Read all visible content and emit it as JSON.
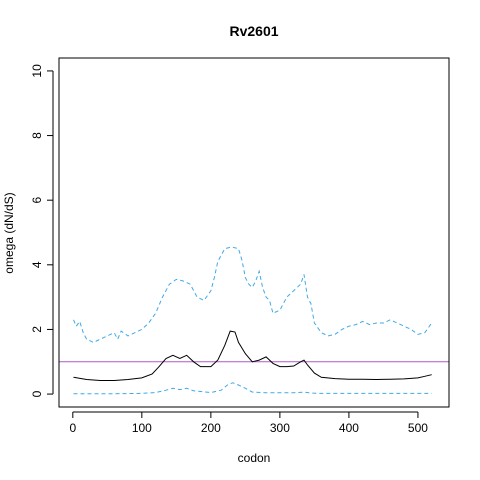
{
  "chart_data": {
    "type": "line",
    "title": "Rv2601",
    "xlabel": "codon",
    "ylabel": "omega (dN/dS)",
    "xlim": [
      -20,
      545
    ],
    "ylim": [
      -0.4,
      10.4
    ],
    "xticks": [
      0,
      100,
      200,
      300,
      400,
      500
    ],
    "yticks": [
      0,
      2,
      4,
      6,
      8,
      10
    ],
    "grid": false,
    "legend": "none",
    "reference_line": {
      "y": 1,
      "color": "#b05cc8"
    },
    "series": [
      {
        "style": "solid",
        "color": "#000000",
        "x": [
          1,
          20,
          40,
          60,
          80,
          100,
          115,
          125,
          135,
          145,
          155,
          165,
          175,
          185,
          200,
          210,
          220,
          228,
          235,
          240,
          250,
          260,
          270,
          280,
          290,
          300,
          310,
          320,
          330,
          335,
          340,
          350,
          360,
          380,
          400,
          420,
          440,
          460,
          480,
          500,
          510,
          520
        ],
        "y": [
          0.52,
          0.45,
          0.42,
          0.42,
          0.45,
          0.5,
          0.62,
          0.85,
          1.1,
          1.2,
          1.1,
          1.2,
          1.0,
          0.85,
          0.85,
          1.05,
          1.5,
          1.95,
          1.92,
          1.6,
          1.25,
          1.0,
          1.05,
          1.15,
          0.95,
          0.85,
          0.85,
          0.87,
          1.0,
          1.05,
          0.9,
          0.65,
          0.52,
          0.48,
          0.46,
          0.46,
          0.45,
          0.46,
          0.47,
          0.5,
          0.55,
          0.6
        ]
      },
      {
        "style": "dashed",
        "color": "#3fa9e8",
        "x": [
          1,
          5,
          10,
          15,
          20,
          30,
          40,
          50,
          60,
          65,
          70,
          80,
          90,
          100,
          110,
          120,
          130,
          140,
          150,
          160,
          170,
          180,
          190,
          200,
          205,
          210,
          220,
          230,
          240,
          245,
          250,
          255,
          260,
          265,
          270,
          275,
          280,
          285,
          290,
          300,
          310,
          320,
          330,
          335,
          340,
          345,
          350,
          360,
          370,
          380,
          390,
          400,
          410,
          420,
          430,
          440,
          450,
          460,
          470,
          480,
          490,
          500,
          510,
          520
        ],
        "y": [
          2.3,
          2.1,
          2.25,
          1.9,
          1.7,
          1.6,
          1.7,
          1.8,
          1.9,
          1.7,
          1.95,
          1.8,
          1.9,
          2.0,
          2.2,
          2.5,
          3.0,
          3.4,
          3.55,
          3.5,
          3.4,
          3.0,
          2.9,
          3.2,
          3.6,
          4.1,
          4.5,
          4.55,
          4.5,
          4.15,
          3.6,
          3.4,
          3.3,
          3.5,
          3.8,
          3.3,
          3.0,
          2.9,
          2.5,
          2.6,
          3.0,
          3.2,
          3.4,
          3.7,
          3.0,
          2.8,
          2.2,
          1.9,
          1.8,
          1.85,
          2.0,
          2.1,
          2.15,
          2.25,
          2.15,
          2.2,
          2.2,
          2.3,
          2.2,
          2.1,
          2.0,
          1.85,
          1.9,
          2.2
        ]
      },
      {
        "style": "dashed",
        "color": "#3fa9e8",
        "x": [
          1,
          50,
          100,
          120,
          135,
          145,
          155,
          165,
          175,
          200,
          215,
          225,
          232,
          240,
          250,
          260,
          280,
          300,
          320,
          335,
          345,
          360,
          400,
          450,
          500,
          520
        ],
        "y": [
          0.01,
          0.01,
          0.02,
          0.05,
          0.12,
          0.18,
          0.14,
          0.18,
          0.1,
          0.05,
          0.12,
          0.3,
          0.35,
          0.28,
          0.18,
          0.06,
          0.04,
          0.04,
          0.04,
          0.06,
          0.03,
          0.02,
          0.02,
          0.02,
          0.02,
          0.02
        ]
      }
    ]
  }
}
